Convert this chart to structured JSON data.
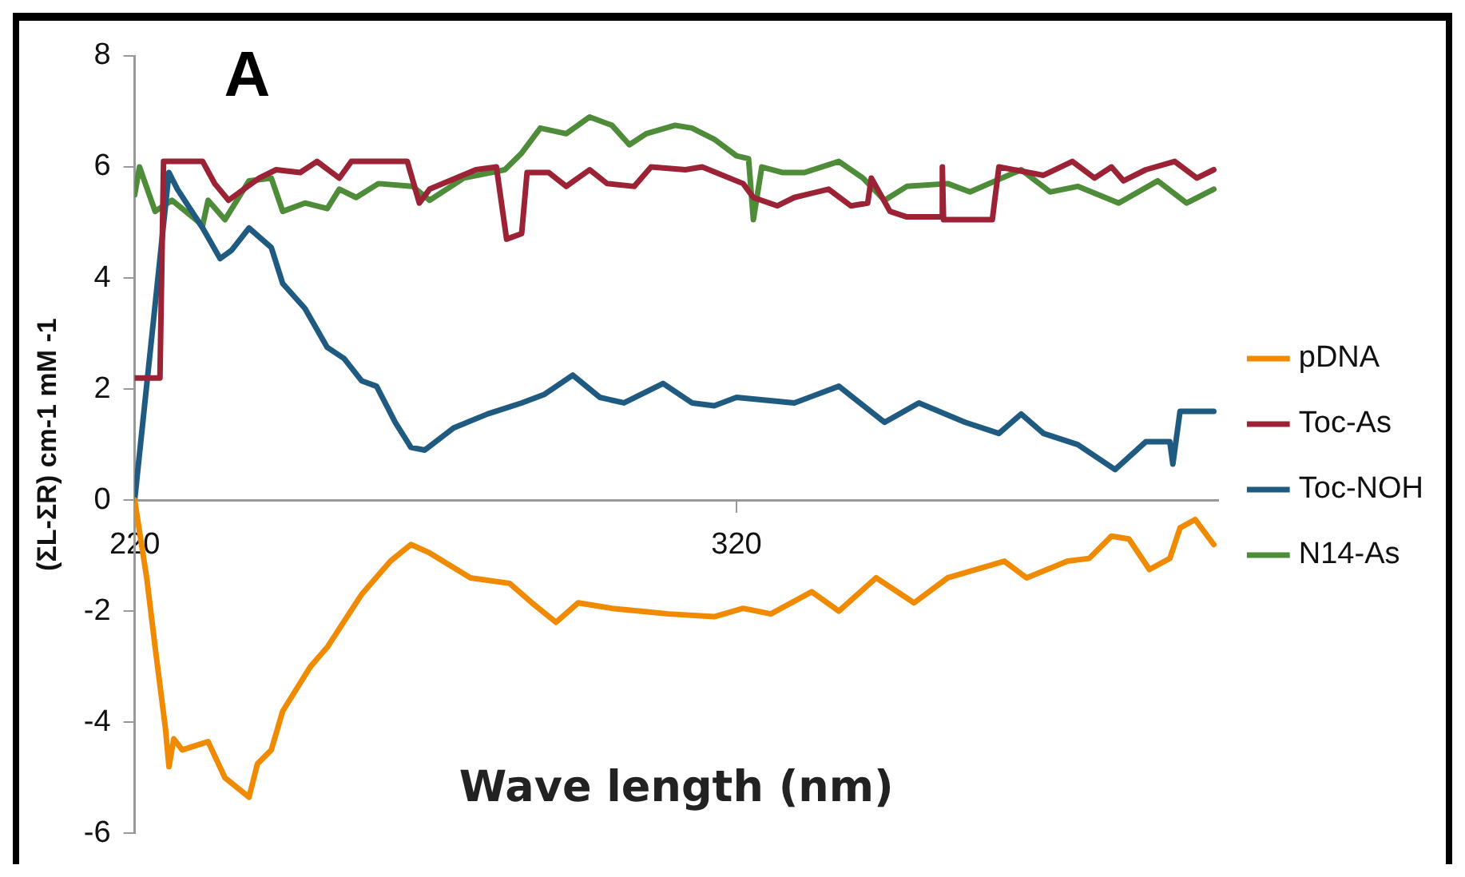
{
  "chart_data": {
    "type": "line",
    "xlabel": "Wave length (nm)",
    "ylabel": "(ΣL-ΣR) cm-1 mM -1",
    "annotations": [
      "A"
    ],
    "xlim": [
      220,
      400
    ],
    "xticks": [
      220,
      320
    ],
    "ylim": [
      -6,
      8
    ],
    "yticks": [
      -6,
      -4,
      -2,
      0,
      2,
      4,
      6,
      8
    ],
    "legend": "right",
    "marker": "none",
    "line_style": "solid",
    "series": [
      {
        "name": "pDNA",
        "color": "#f08a00",
        "x": [
          220,
          222,
          223.4,
          225.1,
          225.7,
          226.5,
          227.9,
          232.2,
          235,
          239,
          240.4,
          242.7,
          244.6,
          249.2,
          252,
          257.7,
          262.5,
          265.9,
          269,
          275.8,
          282.3,
          286,
          290,
          293.7,
          299.3,
          308.7,
          316.3,
          321.1,
          325.7,
          332.5,
          337,
          343.2,
          349.5,
          355.1,
          364.5,
          368.2,
          375,
          378.6,
          382.3,
          385.2,
          388.6,
          392,
          393.7,
          396.2,
          399.3
        ],
        "values": [
          0,
          -1.4,
          -2.65,
          -4.1,
          -4.8,
          -4.3,
          -4.5,
          -4.35,
          -5,
          -5.35,
          -4.75,
          -4.5,
          -3.8,
          -3,
          -2.65,
          -1.7,
          -1.1,
          -0.8,
          -0.95,
          -1.4,
          -1.5,
          -1.85,
          -2.2,
          -1.85,
          -1.95,
          -2.05,
          -2.1,
          -1.95,
          -2.05,
          -1.65,
          -2,
          -1.4,
          -1.85,
          -1.4,
          -1.1,
          -1.4,
          -1.1,
          -1.05,
          -0.65,
          -0.7,
          -1.25,
          -1.05,
          -0.5,
          -0.35,
          -0.8
        ]
      },
      {
        "name": "Toc-As",
        "color": "#9b2335",
        "x": [
          220,
          224.2,
          224.8,
          231.3,
          233.3,
          235.6,
          240.7,
          243.5,
          247.5,
          250.3,
          254,
          256,
          265.3,
          267.3,
          269,
          276.7,
          280.1,
          281.8,
          284.3,
          285.2,
          288.8,
          291.7,
          295.6,
          298.5,
          303,
          305.8,
          311.5,
          314.3,
          321.1,
          322.8,
          326.8,
          329.6,
          335.3,
          339,
          341.8,
          342.4,
          345.5,
          348.3,
          354,
          354.2,
          354.4,
          362.5,
          363.6,
          371,
          375.8,
          379.5,
          382.3,
          384.3,
          388,
          392.8,
          396.5,
          399.3
        ],
        "values": [
          2.2,
          2.2,
          6.1,
          6.1,
          5.7,
          5.4,
          5.8,
          5.95,
          5.9,
          6.1,
          5.8,
          6.1,
          6.1,
          5.35,
          5.6,
          5.95,
          6,
          4.7,
          4.8,
          5.9,
          5.9,
          5.65,
          5.95,
          5.7,
          5.65,
          6,
          5.95,
          6,
          5.7,
          5.45,
          5.3,
          5.45,
          5.6,
          5.3,
          5.35,
          5.8,
          5.2,
          5.1,
          5.1,
          6,
          5.05,
          5.05,
          6,
          5.85,
          6.1,
          5.8,
          6,
          5.75,
          5.95,
          6.1,
          5.8,
          5.95
        ]
      },
      {
        "name": "Toc-NOH",
        "color": "#1f5b80",
        "x": [
          220,
          225.7,
          227.1,
          231.3,
          234.2,
          236.1,
          239,
          242.7,
          244.6,
          248.3,
          252,
          254.8,
          257.7,
          260.2,
          263.3,
          265.9,
          268.2,
          273,
          278.6,
          284.3,
          288,
          292.8,
          297.3,
          301.3,
          307.8,
          312.6,
          316.3,
          320,
          329.6,
          337,
          344.6,
          350.3,
          358,
          363.6,
          367.3,
          371,
          376.7,
          382.9,
          388,
          392,
          392.5,
          393.7,
          399.3
        ],
        "values": [
          0,
          5.9,
          5.6,
          4.9,
          4.35,
          4.5,
          4.9,
          4.55,
          3.9,
          3.45,
          2.75,
          2.55,
          2.15,
          2.05,
          1.4,
          0.95,
          0.9,
          1.3,
          1.55,
          1.75,
          1.9,
          2.25,
          1.85,
          1.75,
          2.1,
          1.75,
          1.7,
          1.85,
          1.75,
          2.05,
          1.4,
          1.75,
          1.4,
          1.2,
          1.55,
          1.2,
          1,
          0.55,
          1.05,
          1.05,
          0.65,
          1.6,
          1.6
        ]
      },
      {
        "name": "N14-As",
        "color": "#4e8c3a",
        "x": [
          220,
          220.8,
          223.4,
          226.2,
          231.3,
          232.2,
          235,
          239,
          242.7,
          244.6,
          248.3,
          252,
          254,
          256.8,
          260.5,
          266.2,
          269,
          274.7,
          281.5,
          284.3,
          287.4,
          291.7,
          295.6,
          299.3,
          302.2,
          305,
          309.8,
          312.6,
          316.3,
          320,
          322,
          322.8,
          324.2,
          327.6,
          331.3,
          337,
          341,
          344.6,
          348.3,
          355.1,
          358.8,
          367.3,
          372.1,
          376.7,
          383.5,
          390,
          394.8,
          399.3
        ],
        "values": [
          5.5,
          6,
          5.2,
          5.4,
          4.95,
          5.4,
          5.05,
          5.75,
          5.8,
          5.2,
          5.35,
          5.25,
          5.6,
          5.45,
          5.7,
          5.65,
          5.4,
          5.8,
          5.95,
          6.25,
          6.7,
          6.6,
          6.9,
          6.75,
          6.4,
          6.6,
          6.75,
          6.7,
          6.5,
          6.2,
          6.15,
          5.05,
          6,
          5.9,
          5.9,
          6.1,
          5.8,
          5.4,
          5.65,
          5.7,
          5.55,
          5.95,
          5.55,
          5.65,
          5.35,
          5.75,
          5.35,
          5.6
        ]
      }
    ]
  }
}
